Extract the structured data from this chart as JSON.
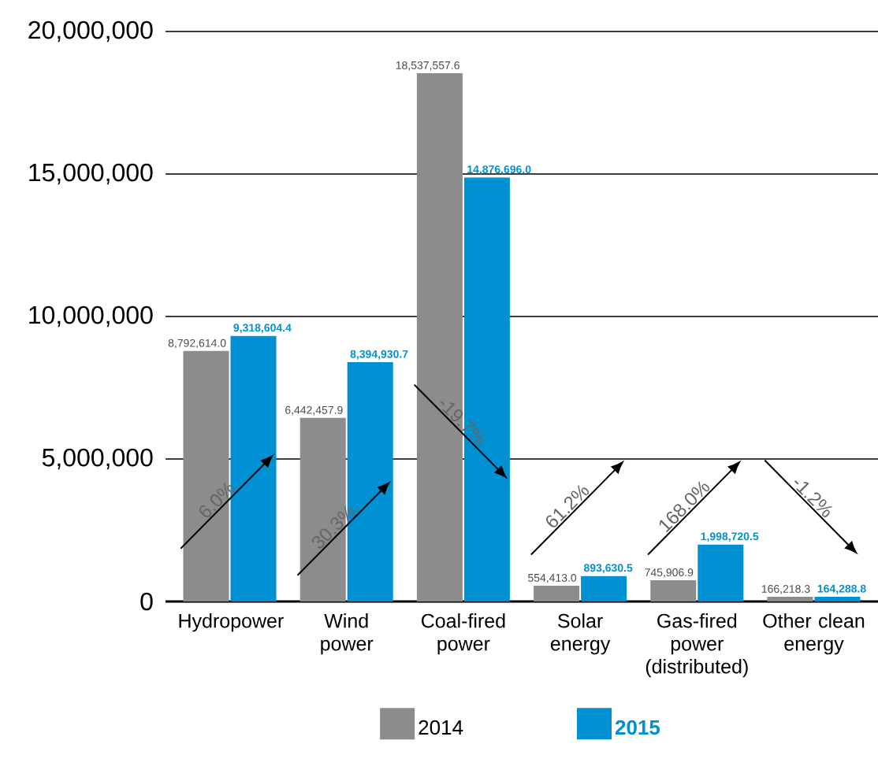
{
  "chart_data": {
    "type": "bar",
    "categories": [
      "Hydropower",
      "Wind power",
      "Coal-fired power",
      "Solar energy",
      "Gas-fired power (distributed)",
      "Other clean energy"
    ],
    "series": [
      {
        "name": "2014",
        "color": "#8c8c8c",
        "values": [
          8792614.0,
          6442457.9,
          18537557.6,
          554413.0,
          745906.9,
          166218.3
        ],
        "value_labels": [
          "8,792,614.0",
          "6,442,457.9",
          "18,537,557.6",
          "554,413.0",
          "745,906.9",
          "166,218.3"
        ]
      },
      {
        "name": "2015",
        "color": "#0090d4",
        "values": [
          9318604.4,
          8394930.7,
          14876696.0,
          893630.5,
          1998720.5,
          164288.8
        ],
        "value_labels": [
          "9,318,604.4",
          "8,394,930.7",
          "14,876,696.0",
          "893,630.5",
          "1,998,720.5",
          "164,288.8"
        ]
      }
    ],
    "annotations": [
      "6.0%",
      "30.3%",
      "-19.7%",
      "61.2%",
      "168.0%",
      "-1.2%"
    ],
    "ylim": [
      0,
      20000000
    ],
    "yticks": [
      0,
      {
        "value": 5000000,
        "label": "5,000,000"
      },
      {
        "value": 10000000,
        "label": "10,000,000"
      },
      {
        "value": 15000000,
        "label": "15,000,000"
      },
      {
        "value": 20000000,
        "label": "20,000,000"
      }
    ],
    "grid": "y",
    "legend": "bottom"
  }
}
